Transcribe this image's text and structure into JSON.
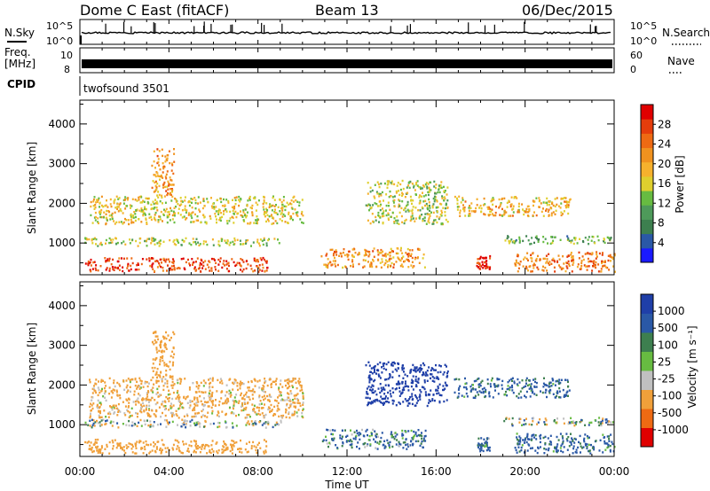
{
  "header": {
    "station": "Dome C East (fitACF)",
    "beam": "Beam 13",
    "date": "06/Dec/2015"
  },
  "strip": {
    "nsky_label": "N.Sky",
    "nsky_ticks": [
      "10^5",
      "10^0"
    ],
    "nsearch_label": "N.Search",
    "nsearch_ticks": [
      "10^5",
      "10^0"
    ],
    "freq_label": "Freq.",
    "freq_unit": "[MHz]",
    "freq_ticks": [
      "10",
      "8"
    ],
    "nave_label": "Nave",
    "nave_ticks": [
      "60",
      "0"
    ],
    "cpid_label": "CPID",
    "cpid_value": "twofsound 3501"
  },
  "colors": {
    "power_scale": [
      "#1a1aff",
      "#2a58a6",
      "#3d7f4f",
      "#4e9a5a",
      "#67bb41",
      "#dfcf2e",
      "#f6b12d",
      "#f0921f",
      "#ee6a13",
      "#e53d0c",
      "#e00000"
    ],
    "velocity_scale": [
      "#e00000",
      "#ee6a13",
      "#f0a03a",
      "#c0c0c0",
      "#67bb41",
      "#3d7f4f",
      "#2a58a6",
      "#1f3fa8"
    ]
  },
  "chart_data": [
    {
      "type": "heatmap",
      "panel": "power",
      "ylabel": "Slant Range [km]",
      "xlim": [
        "00:00",
        "24:00"
      ],
      "ylim": [
        200,
        4600
      ],
      "yticks": [
        "1000",
        "2000",
        "3000",
        "4000"
      ],
      "colorbar_label": "Power [dB]",
      "colorbar_ticks": [
        "4",
        "8",
        "12",
        "16",
        "20",
        "24",
        "28"
      ],
      "colorbar_range": [
        0,
        30
      ],
      "echo_regions": [
        {
          "t_start": 0.2,
          "t_end": 8.4,
          "r_min": 300,
          "r_max": 650,
          "value": 26
        },
        {
          "t_start": 0.2,
          "t_end": 9.0,
          "r_min": 950,
          "r_max": 1150,
          "value": 14
        },
        {
          "t_start": 0.4,
          "t_end": 10.0,
          "r_min": 1500,
          "r_max": 2200,
          "value": 16
        },
        {
          "t_start": 3.2,
          "t_end": 4.2,
          "r_min": 2200,
          "r_max": 3400,
          "value": 20
        },
        {
          "t_start": 10.8,
          "t_end": 15.5,
          "r_min": 400,
          "r_max": 900,
          "value": 20
        },
        {
          "t_start": 12.8,
          "t_end": 16.5,
          "r_min": 1500,
          "r_max": 2600,
          "value": 14
        },
        {
          "t_start": 16.8,
          "t_end": 22.0,
          "r_min": 1700,
          "r_max": 2200,
          "value": 18
        },
        {
          "t_start": 17.8,
          "t_end": 18.4,
          "r_min": 350,
          "r_max": 700,
          "value": 28
        },
        {
          "t_start": 19.0,
          "t_end": 24.0,
          "r_min": 1000,
          "r_max": 1200,
          "value": 10
        },
        {
          "t_start": 19.5,
          "t_end": 24.0,
          "r_min": 300,
          "r_max": 800,
          "value": 22
        }
      ]
    },
    {
      "type": "heatmap",
      "panel": "velocity",
      "ylabel": "Slant Range [km]",
      "xlabel": "Time UT",
      "xticks": [
        "00:00",
        "04:00",
        "08:00",
        "12:00",
        "16:00",
        "20:00",
        "00:00"
      ],
      "xlim": [
        "00:00",
        "24:00"
      ],
      "ylim": [
        200,
        4600
      ],
      "yticks": [
        "1000",
        "2000",
        "3000",
        "4000"
      ],
      "colorbar_label": "Velocity [m s⁻¹]",
      "colorbar_ticks": [
        "1000",
        "500",
        "100",
        "25",
        "-25",
        "-100",
        "-500",
        "-1000"
      ],
      "echo_regions": [
        {
          "t_start": 0.2,
          "t_end": 8.4,
          "r_min": 300,
          "r_max": 650,
          "value": -300
        },
        {
          "t_start": 0.2,
          "t_end": 9.0,
          "r_min": 950,
          "r_max": 1150,
          "value": 0
        },
        {
          "t_start": 0.4,
          "t_end": 10.0,
          "r_min": 1200,
          "r_max": 2200,
          "value": -200
        },
        {
          "t_start": 3.2,
          "t_end": 4.2,
          "r_min": 2200,
          "r_max": 3400,
          "value": -300
        },
        {
          "t_start": 10.8,
          "t_end": 15.5,
          "r_min": 400,
          "r_max": 900,
          "value": 150
        },
        {
          "t_start": 12.8,
          "t_end": 16.5,
          "r_min": 1500,
          "r_max": 2600,
          "value": 700
        },
        {
          "t_start": 16.8,
          "t_end": 22.0,
          "r_min": 1700,
          "r_max": 2200,
          "value": 200
        },
        {
          "t_start": 17.8,
          "t_end": 18.4,
          "r_min": 350,
          "r_max": 700,
          "value": 150
        },
        {
          "t_start": 19.0,
          "t_end": 24.0,
          "r_min": 1000,
          "r_max": 1200,
          "value": 0
        },
        {
          "t_start": 19.5,
          "t_end": 24.0,
          "r_min": 300,
          "r_max": 800,
          "value": 200
        }
      ]
    }
  ]
}
